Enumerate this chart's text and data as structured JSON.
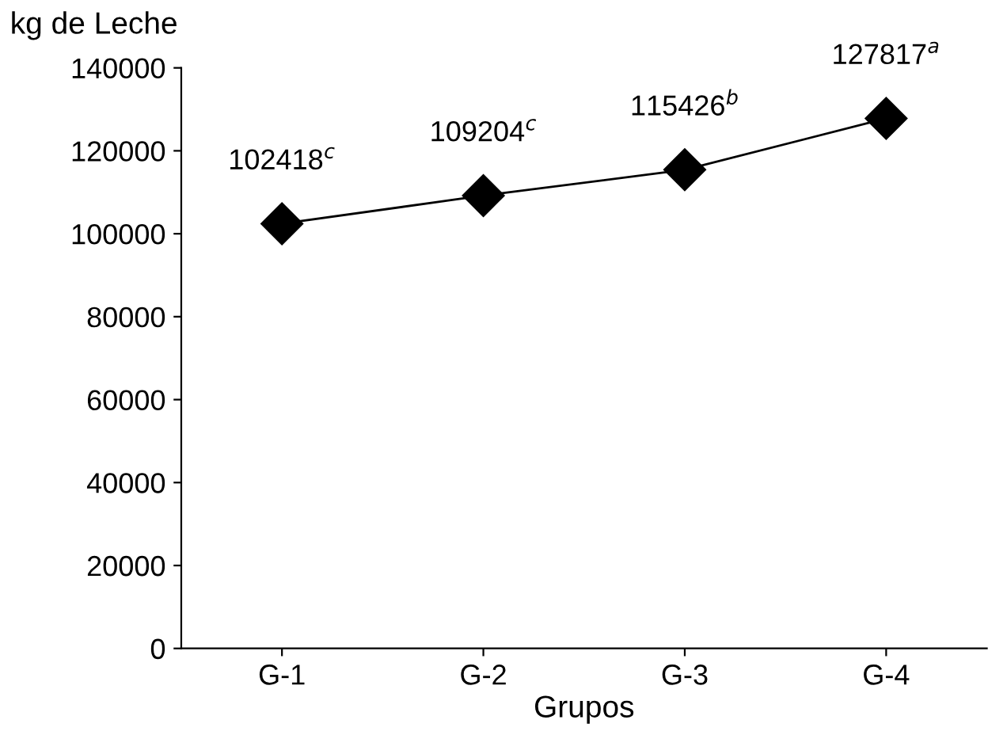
{
  "chart_data": {
    "type": "line",
    "ylabel": "kg de Leche",
    "xlabel": "Grupos",
    "categories": [
      "G-1",
      "G-2",
      "G-3",
      "G-4"
    ],
    "series": [
      {
        "color": "#000000",
        "values": [
          102418,
          109204,
          115426,
          127817
        ],
        "value_labels": [
          "102418$^{c}$",
          "109204$^{c}$",
          "115426$^{b}$",
          "127817$^{a}$"
        ]
      }
    ],
    "ylim": [
      0,
      140000
    ],
    "yticks": [
      0,
      20000,
      40000,
      60000,
      80000,
      100000,
      120000,
      140000
    ],
    "marker": "diamond",
    "line_style": "solid",
    "grid": false,
    "legend": false
  }
}
